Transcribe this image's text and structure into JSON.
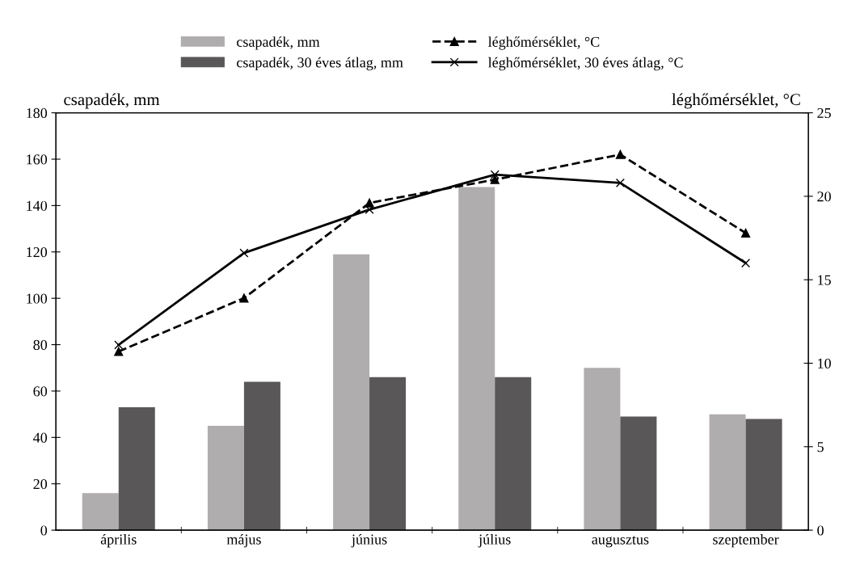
{
  "chart_data": {
    "type": "bar",
    "ylabel": "csapadék, mm",
    "y2label": "léghőmérséklet, °C",
    "categories": [
      "április",
      "május",
      "június",
      "július",
      "augusztus",
      "szeptember"
    ],
    "series": [
      {
        "name": "csapadék, mm",
        "color": "#b0adae",
        "values": [
          16,
          45,
          119,
          148,
          70,
          50
        ]
      },
      {
        "name": "csapadék, 30 éves átlag, mm",
        "color": "#595758",
        "values": [
          53,
          64,
          66,
          66,
          49,
          48
        ]
      },
      {
        "name": "léghőmérséklet, °C",
        "type": "line",
        "axis": "y2",
        "color": "#000000",
        "marker": "triangle",
        "line_style": "dashed",
        "values": [
          10.7,
          13.9,
          19.6,
          21.0,
          22.5,
          17.8
        ]
      },
      {
        "name": "léghőmérséklet, 30 éves átlag, °C",
        "type": "line",
        "axis": "y2",
        "color": "#000000",
        "marker": "cross",
        "line_style": "solid",
        "values": [
          11.1,
          16.6,
          19.2,
          21.3,
          20.8,
          16.0
        ]
      }
    ],
    "ylim": [
      0,
      180
    ],
    "yticks": [
      0,
      20,
      40,
      60,
      80,
      100,
      120,
      140,
      160,
      180
    ],
    "y2lim": [
      0,
      25
    ],
    "y2ticks": [
      0,
      5,
      10,
      15,
      20,
      25
    ],
    "grid": false,
    "legend": "top"
  }
}
